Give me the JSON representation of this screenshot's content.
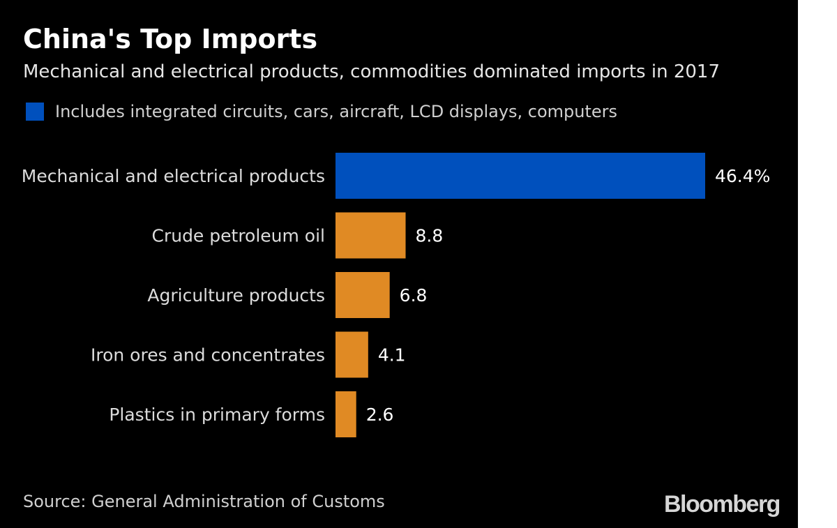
{
  "chart_data": {
    "type": "bar",
    "orientation": "horizontal",
    "title": "China's Top Imports",
    "subtitle": "Mechanical and electrical products, commodities dominated imports in 2017",
    "legend": {
      "label": "Includes integrated circuits, cars, aircraft, LCD displays, computers",
      "color": "#0050bd",
      "placement": "top-left"
    },
    "categories": [
      "Mechanical and electrical products",
      "Crude petroleum oil",
      "Agriculture products",
      "Iron ores and concentrates",
      "Plastics in primary forms"
    ],
    "values": [
      46.4,
      8.8,
      6.8,
      4.1,
      2.6
    ],
    "value_labels": [
      "46.4%",
      "8.8",
      "6.8",
      "4.1",
      "2.6"
    ],
    "colors": [
      "#0050bd",
      "#e08a24",
      "#e08a24",
      "#e08a24",
      "#e08a24"
    ],
    "unit": "%",
    "grid": false,
    "source": "Source: General Administration of Customs"
  },
  "branding": {
    "logo": "Bloomberg"
  }
}
